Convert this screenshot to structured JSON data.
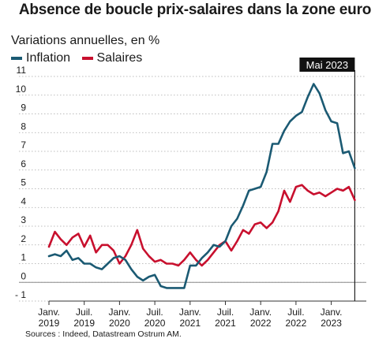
{
  "chart_data": {
    "type": "line",
    "title": "Absence de boucle prix-salaires dans la zone euro",
    "ylabel": "Variations annuelles, en %",
    "source": "Sources : Indeed, Datastream Ostrum AM.",
    "ylim": [
      -1,
      11
    ],
    "yticks": [
      "- 1",
      "0",
      "1",
      "2",
      "3",
      "4",
      "5",
      "6",
      "7",
      "8",
      "9",
      "10",
      "11"
    ],
    "xticks": [
      {
        "month": 0,
        "line1": "Janv.",
        "line2": "2019"
      },
      {
        "month": 6,
        "line1": "Juil.",
        "line2": "2019"
      },
      {
        "month": 12,
        "line1": "Janv.",
        "line2": "2020"
      },
      {
        "month": 18,
        "line1": "Juil.",
        "line2": "2020"
      },
      {
        "month": 24,
        "line1": "Janv.",
        "line2": "2021"
      },
      {
        "month": 30,
        "line1": "Juil.",
        "line2": "2021"
      },
      {
        "month": 36,
        "line1": "Janv.",
        "line2": "2022"
      },
      {
        "month": 42,
        "line1": "Juil.",
        "line2": "2022"
      },
      {
        "month": 48,
        "line1": "Janv.",
        "line2": "2023"
      }
    ],
    "marker": {
      "label": "Mai 2023",
      "month": 52
    },
    "grid": "horizontal",
    "legend_position": "top-left",
    "series": [
      {
        "name": "Inflation",
        "color": "#1b5a73",
        "values": [
          1.4,
          1.5,
          1.4,
          1.7,
          1.2,
          1.3,
          1.0,
          1.0,
          0.8,
          0.7,
          1.0,
          1.3,
          1.4,
          1.2,
          0.7,
          0.3,
          0.1,
          0.3,
          0.4,
          -0.2,
          -0.3,
          -0.3,
          -0.3,
          -0.3,
          0.9,
          0.9,
          1.3,
          1.6,
          2.0,
          1.9,
          2.2,
          3.0,
          3.4,
          4.1,
          4.9,
          5.0,
          5.1,
          5.9,
          7.4,
          7.4,
          8.1,
          8.6,
          8.9,
          9.1,
          9.9,
          10.6,
          10.1,
          9.2,
          8.6,
          8.5,
          6.9,
          7.0,
          6.1
        ]
      },
      {
        "name": "Salaires",
        "color": "#c8102e",
        "values": [
          1.9,
          2.7,
          2.3,
          2.0,
          2.4,
          2.6,
          1.9,
          2.5,
          1.6,
          2.0,
          2.0,
          1.7,
          1.0,
          1.4,
          2.0,
          2.8,
          1.8,
          1.4,
          1.1,
          1.2,
          1.0,
          1.0,
          0.9,
          1.2,
          1.6,
          1.2,
          0.9,
          1.2,
          1.6,
          2.0,
          2.2,
          1.7,
          2.2,
          2.8,
          2.6,
          3.1,
          3.2,
          2.9,
          3.2,
          3.8,
          4.9,
          4.3,
          5.1,
          5.2,
          4.9,
          4.7,
          4.8,
          4.6,
          4.8,
          5.0,
          4.9,
          5.1,
          4.4
        ]
      }
    ]
  }
}
